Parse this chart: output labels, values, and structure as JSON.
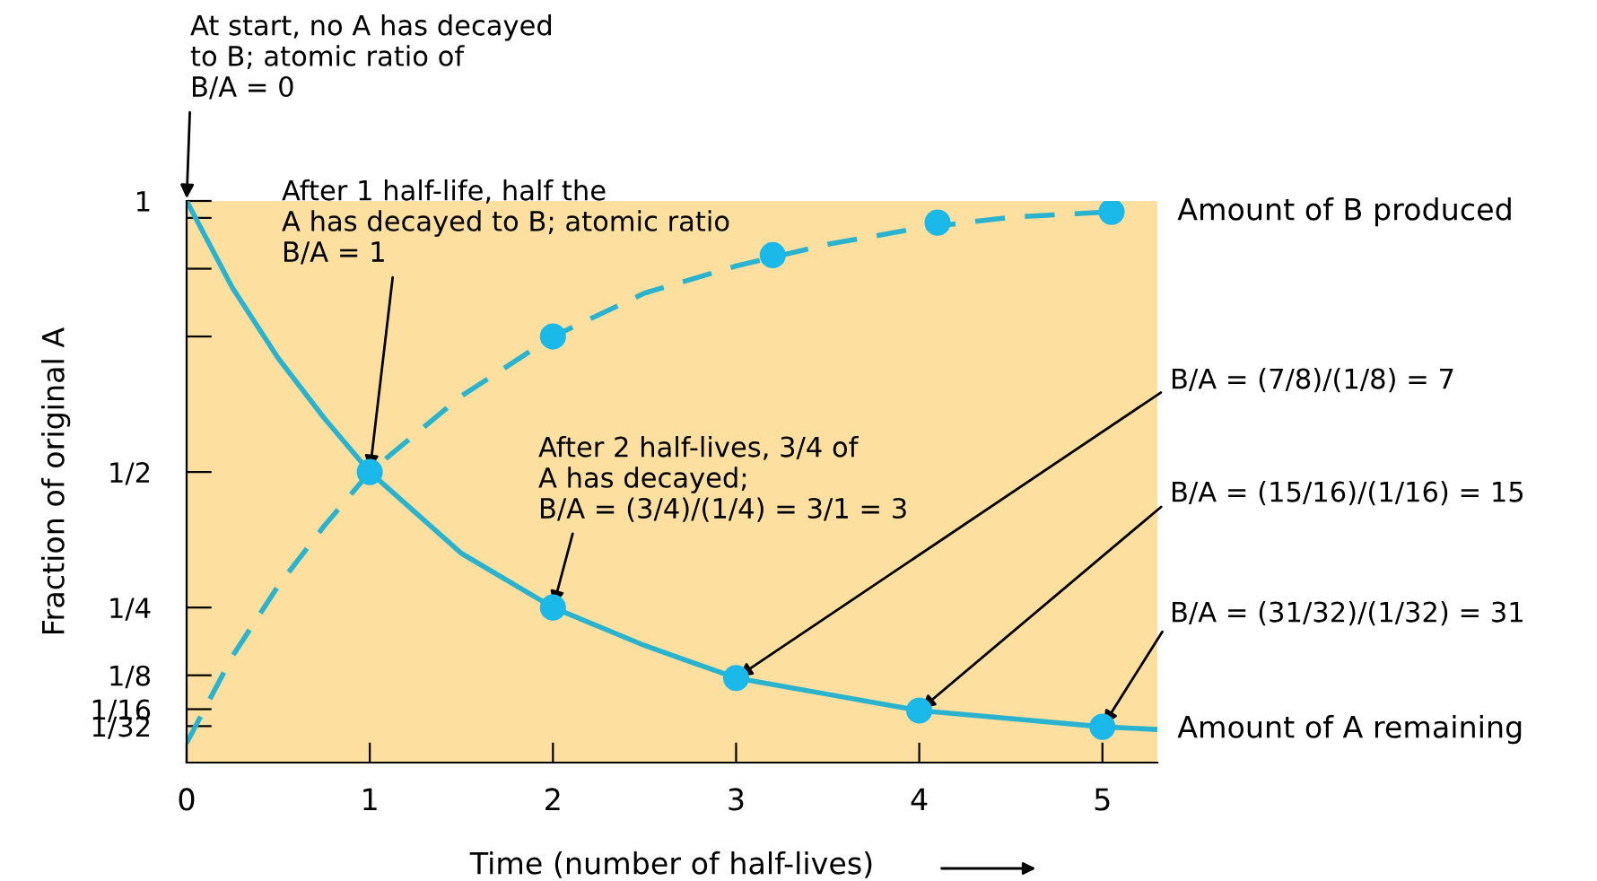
{
  "chart_data": {
    "type": "line",
    "xlabel": "Time (number of half-lives)",
    "ylabel": "Fraction of original A",
    "xlim": [
      0,
      5.3
    ],
    "xticks": [
      0,
      1,
      2,
      3,
      4,
      5
    ],
    "ylim": [
      -0.036,
      1
    ],
    "yticks": [
      1,
      {
        "value": 0.96875,
        "label": null
      },
      {
        "value": 0.875,
        "label": null
      },
      {
        "value": 0.75,
        "label": null
      },
      {
        "value": 0.5,
        "label": "1/2"
      },
      {
        "value": 0.25,
        "label": "1/4"
      },
      {
        "value": 0.125,
        "label": "1/8"
      },
      {
        "value": 0.0625,
        "label": "1/16"
      },
      {
        "value": 0.03125,
        "label": "1/32"
      }
    ],
    "grid": false,
    "legend": false,
    "series": [
      {
        "name": "Amount of B produced",
        "type": "line",
        "line_style": "dashed",
        "color": "#2ab3cf",
        "x": [
          0,
          0.25,
          0.5,
          0.75,
          1,
          1.5,
          2,
          2.5,
          3,
          3.5,
          4,
          4.5,
          5.05
        ],
        "values": [
          0,
          0.16,
          0.29,
          0.4,
          0.5,
          0.64,
          0.75,
          0.83,
          0.88,
          0.92,
          0.95,
          0.97,
          0.98
        ]
      },
      {
        "name": "Amount of A remaining",
        "type": "line",
        "line_style": "solid",
        "color": "#2ab3cf",
        "x": [
          0,
          0.25,
          0.5,
          0.75,
          1,
          1.5,
          2,
          2.5,
          3,
          3.5,
          4,
          4.5,
          5,
          5.3
        ],
        "values": [
          1,
          0.84,
          0.71,
          0.6,
          0.5,
          0.35,
          0.25,
          0.18,
          0.12,
          0.09,
          0.06,
          0.045,
          0.03,
          0.025
        ]
      },
      {
        "type": "scatter",
        "marker": "circle",
        "color": "#1bb9e9",
        "x": [
          1,
          2,
          3,
          4,
          5
        ],
        "values": [
          0.5,
          0.25,
          0.12,
          0.06,
          0.03
        ]
      },
      {
        "type": "scatter",
        "marker": "circle",
        "color": "#1bb9e9",
        "x": [
          2,
          3.2,
          4.1,
          5.05
        ],
        "values": [
          0.75,
          0.9,
          0.96,
          0.98
        ]
      }
    ],
    "annotations": [
      {
        "text": "At start, no A has decayed\nto B; atomic ratio of\nB/A = 0",
        "x": 0,
        "y": 1
      },
      {
        "text": "After 1 half-life, half the\nA has decayed to B; atomic ratio\nB/A = 1",
        "x": 1,
        "y": 0.5
      },
      {
        "text": "After 2 half-lives, 3/4 of\nA has decayed;\nB/A = (3/4)/(1/4) = 3/1 = 3",
        "x": 2,
        "y": 0.25
      },
      {
        "text": "B/A = (7/8)/(1/8) = 7",
        "x": 3,
        "y": 0.12
      },
      {
        "text": "B/A = (15/16)/(1/16) = 15",
        "x": 4,
        "y": 0.06
      },
      {
        "text": "B/A = (31/32)/(1/32) = 31",
        "x": 5,
        "y": 0.03
      }
    ]
  }
}
